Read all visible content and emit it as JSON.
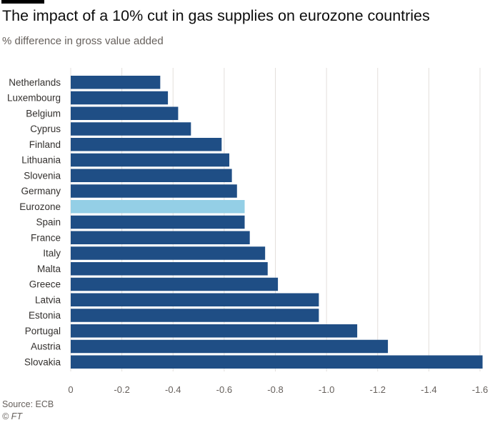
{
  "header": {
    "title": "The impact of a 10% cut in gas supplies on eurozone countries",
    "subtitle": "% difference in gross value added"
  },
  "footer": {
    "source": "Source: ECB",
    "credit": "© FT"
  },
  "colors": {
    "bar": "#1f4e85",
    "highlight": "#94cfe6",
    "grid": "#e3dfdc",
    "axis_text": "#66605c",
    "label_text": "#33302e"
  },
  "chart_data": {
    "type": "bar",
    "orientation": "horizontal",
    "categories": [
      "Netherlands",
      "Luxembourg",
      "Belgium",
      "Cyprus",
      "Finland",
      "Lithuania",
      "Slovenia",
      "Germany",
      "Eurozone",
      "Spain",
      "France",
      "Italy",
      "Malta",
      "Greece",
      "Latvia",
      "Estonia",
      "Portugal",
      "Austria",
      "Slovakia"
    ],
    "values": [
      -0.35,
      -0.38,
      -0.42,
      -0.47,
      -0.59,
      -0.62,
      -0.63,
      -0.65,
      -0.68,
      -0.68,
      -0.7,
      -0.76,
      -0.77,
      -0.81,
      -0.97,
      -0.97,
      -1.12,
      -1.24,
      -1.61
    ],
    "highlight": "Eurozone",
    "xlim": [
      0,
      -1.6
    ],
    "xticks": [
      "0",
      "-0.2",
      "-0.4",
      "-0.6",
      "-0.8",
      "-1.0",
      "-1.2",
      "-1.4",
      "-1.6"
    ],
    "xtick_values": [
      0,
      -0.2,
      -0.4,
      -0.6,
      -0.8,
      -1.0,
      -1.2,
      -1.4,
      -1.6
    ],
    "grid": true,
    "title": "The impact of a 10% cut in gas supplies on eurozone countries",
    "subtitle": "% difference in gross value added",
    "xlabel": "",
    "ylabel": ""
  }
}
